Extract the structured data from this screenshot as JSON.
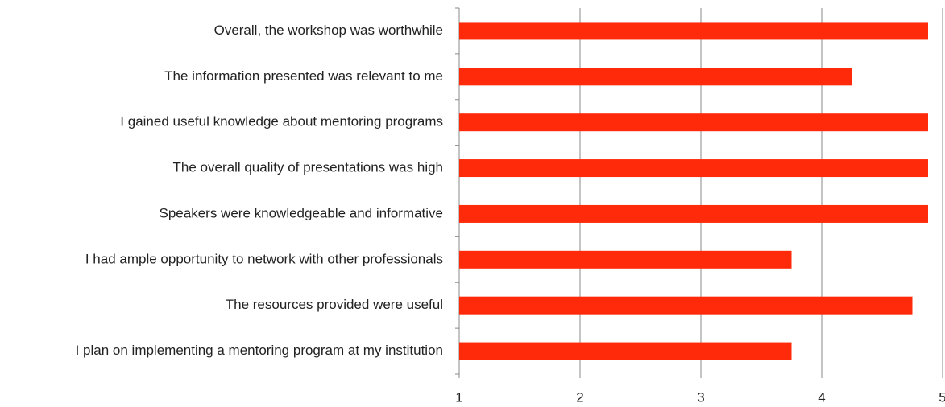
{
  "chart_data": {
    "type": "barh",
    "categories": [
      "Overall, the workshop was worthwhile",
      "The information presented was relevant to me",
      "I gained useful knowledge about mentoring programs",
      "The overall quality of presentations was high",
      "Speakers were knowledgeable and informative",
      "I had ample opportunity to network with other professionals",
      "The resources provided were useful",
      "I plan on implementing a mentoring program at my institution"
    ],
    "values": [
      4.88,
      4.25,
      4.88,
      4.88,
      4.88,
      3.75,
      4.75,
      3.75
    ],
    "color": "#ff2a0a",
    "xlim": [
      1,
      5
    ],
    "xticks": [
      1,
      2,
      3,
      4,
      5
    ],
    "grid": true
  }
}
